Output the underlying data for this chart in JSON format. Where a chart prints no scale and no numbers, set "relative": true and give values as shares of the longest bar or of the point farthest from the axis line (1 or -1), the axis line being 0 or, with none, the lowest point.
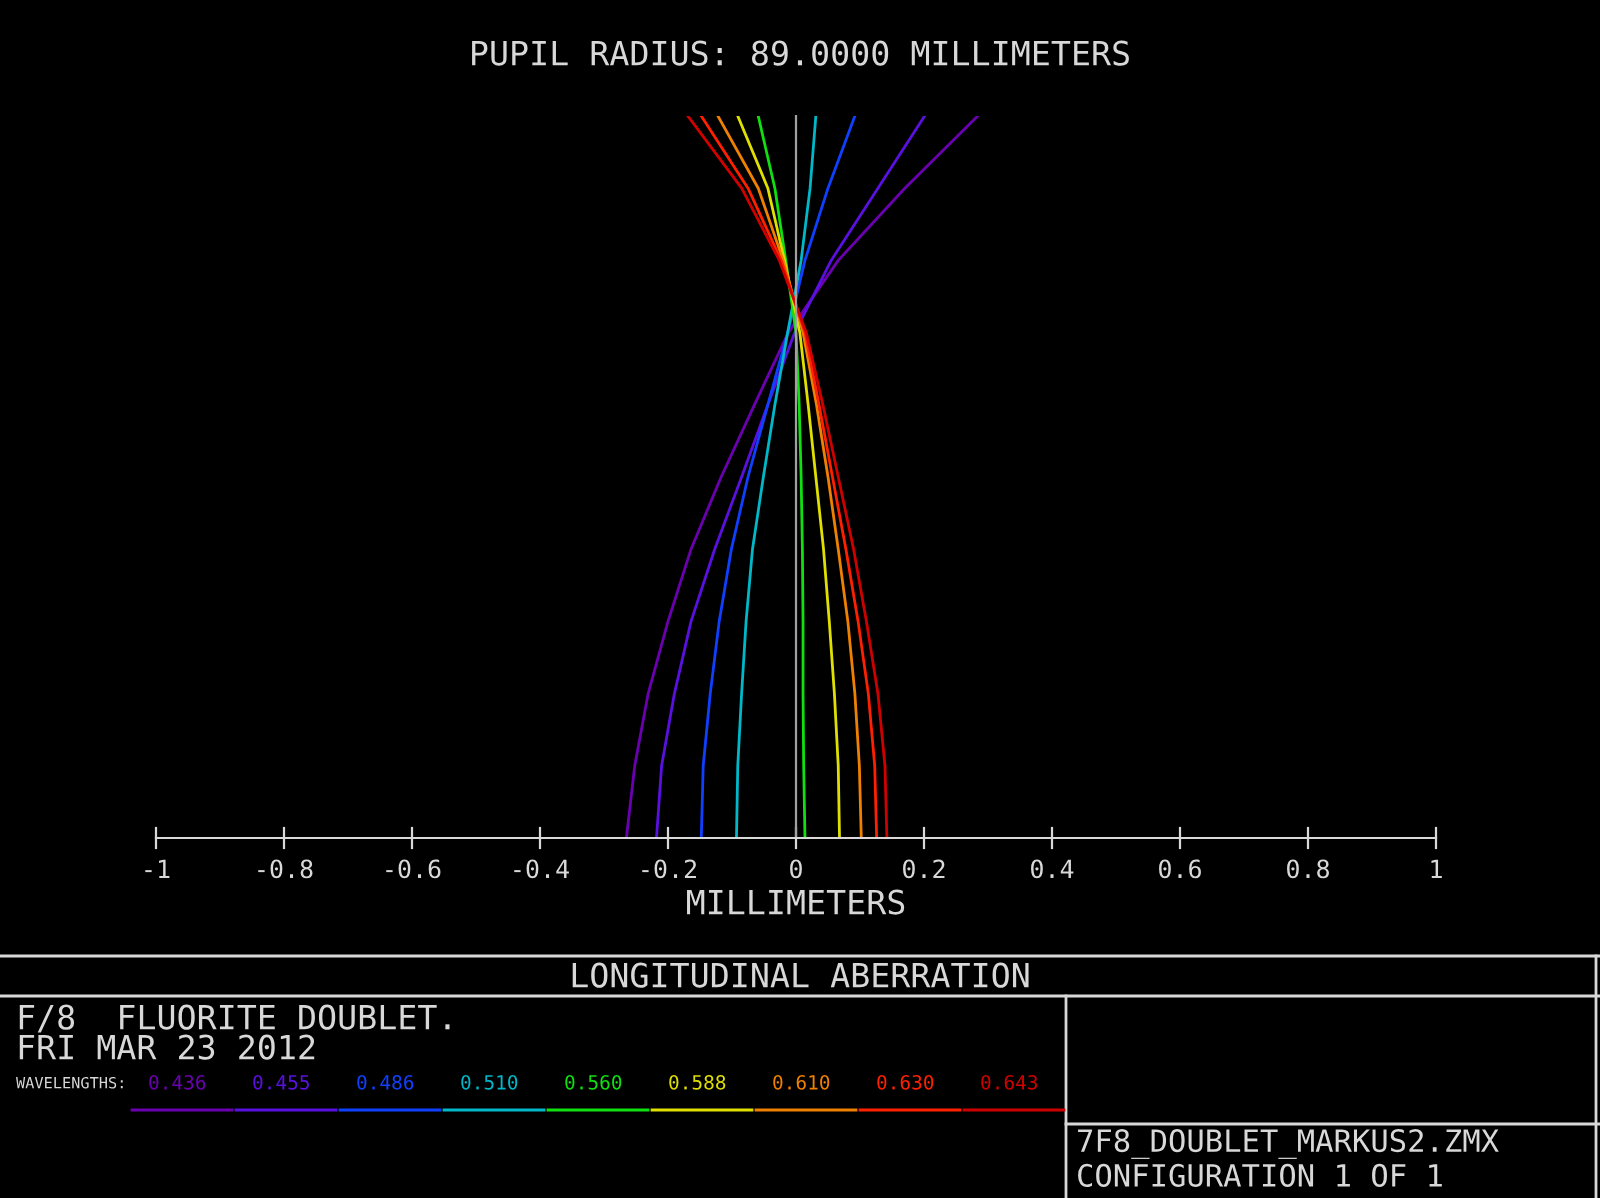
{
  "chart_data": {
    "type": "line",
    "title": "PUPIL RADIUS: 89.0000 MILLIMETERS",
    "xlabel": "MILLIMETERS",
    "relative": true,
    "xlim": [
      -1,
      1
    ],
    "xticks": [
      -1,
      -0.8,
      -0.6,
      -0.4,
      -0.2,
      0,
      0.2,
      0.4,
      0.6,
      0.8,
      1
    ],
    "legend": "bottom",
    "legend_title": "WAVELENGTHS:",
    "marker": "none",
    "line_style": "solid",
    "annotations": [
      "LONGITUDINAL ABERRATION",
      "F/8  FLUORITE DOUBLET.",
      "FRI MAR 23 2012",
      "7F8_DOUBLET_MARKUS2.ZMX",
      "CONFIGURATION 1 OF 1"
    ],
    "series": [
      {
        "name": "0.436",
        "color": "#6a00b0",
        "x": [
          -0.265,
          -0.252,
          -0.231,
          -0.2,
          -0.164,
          -0.117,
          -0.065,
          -0.012,
          0.066,
          0.17,
          0.284
        ],
        "values": [
          0,
          0.1,
          0.2,
          0.3,
          0.4,
          0.5,
          0.6,
          0.7,
          0.8,
          0.9,
          1
        ]
      },
      {
        "name": "0.455",
        "color": "#5a10e0",
        "x": [
          -0.218,
          -0.21,
          -0.19,
          -0.164,
          -0.127,
          -0.085,
          -0.044,
          -0.002,
          0.055,
          0.128,
          0.201
        ],
        "values": [
          0,
          0.1,
          0.2,
          0.3,
          0.4,
          0.5,
          0.6,
          0.7,
          0.8,
          0.9,
          1
        ]
      },
      {
        "name": "0.486",
        "color": "#1040ff",
        "x": [
          -0.148,
          -0.145,
          -0.134,
          -0.12,
          -0.101,
          -0.075,
          -0.044,
          -0.013,
          0.014,
          0.05,
          0.092
        ],
        "values": [
          0,
          0.1,
          0.2,
          0.3,
          0.4,
          0.5,
          0.6,
          0.7,
          0.8,
          0.9,
          1
        ]
      },
      {
        "name": "0.510",
        "color": "#00b8c8",
        "x": [
          -0.093,
          -0.091,
          -0.085,
          -0.078,
          -0.068,
          -0.051,
          -0.033,
          -0.013,
          0.008,
          0.022,
          0.031
        ],
        "values": [
          0,
          0.1,
          0.2,
          0.3,
          0.4,
          0.5,
          0.6,
          0.7,
          0.8,
          0.9,
          1
        ]
      },
      {
        "name": "0.560",
        "color": "#10e010",
        "x": [
          0.014,
          0.012,
          0.011,
          0.011,
          0.01,
          0.008,
          0.005,
          0,
          -0.016,
          -0.033,
          -0.059
        ],
        "values": [
          0,
          0.1,
          0.2,
          0.3,
          0.4,
          0.5,
          0.6,
          0.7,
          0.8,
          0.9,
          1
        ]
      },
      {
        "name": "0.588",
        "color": "#e0e000",
        "x": [
          0.068,
          0.066,
          0.06,
          0.052,
          0.043,
          0.031,
          0.019,
          0.006,
          -0.018,
          -0.044,
          -0.091
        ],
        "values": [
          0,
          0.1,
          0.2,
          0.3,
          0.4,
          0.5,
          0.6,
          0.7,
          0.8,
          0.9,
          1
        ]
      },
      {
        "name": "0.610",
        "color": "#f08000",
        "x": [
          0.102,
          0.099,
          0.092,
          0.081,
          0.066,
          0.05,
          0.032,
          0.011,
          -0.02,
          -0.059,
          -0.122
        ],
        "values": [
          0,
          0.1,
          0.2,
          0.3,
          0.4,
          0.5,
          0.6,
          0.7,
          0.8,
          0.9,
          1
        ]
      },
      {
        "name": "0.630",
        "color": "#ff2000",
        "x": [
          0.126,
          0.123,
          0.113,
          0.097,
          0.078,
          0.057,
          0.036,
          0.014,
          -0.023,
          -0.075,
          -0.148
        ],
        "values": [
          0,
          0.1,
          0.2,
          0.3,
          0.4,
          0.5,
          0.6,
          0.7,
          0.8,
          0.9,
          1
        ]
      },
      {
        "name": "0.643",
        "color": "#d00000",
        "x": [
          0.142,
          0.139,
          0.128,
          0.11,
          0.09,
          0.066,
          0.042,
          0.016,
          -0.026,
          -0.085,
          -0.169
        ],
        "values": [
          0,
          0.1,
          0.2,
          0.3,
          0.4,
          0.5,
          0.6,
          0.7,
          0.8,
          0.9,
          1
        ]
      }
    ]
  }
}
